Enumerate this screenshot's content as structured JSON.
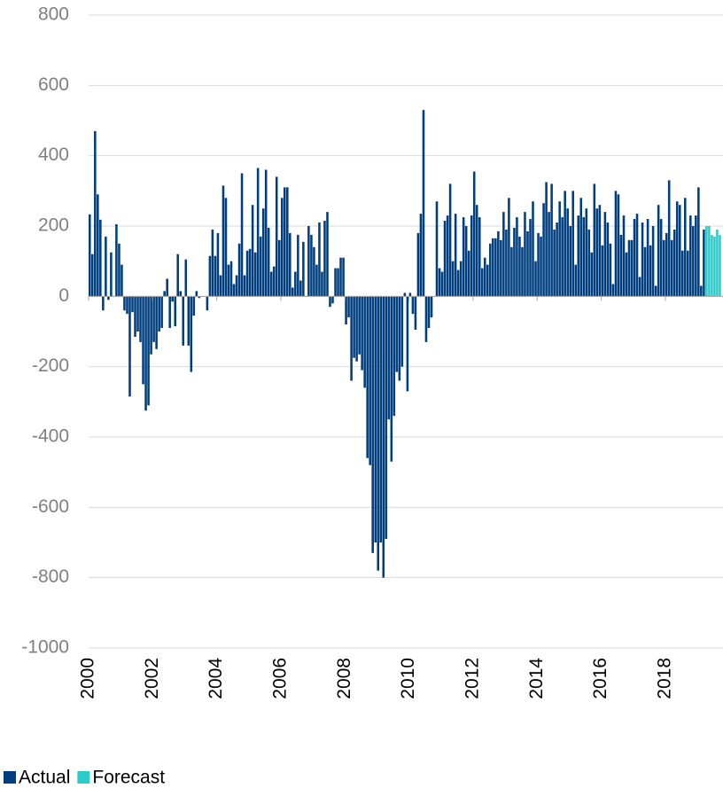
{
  "chart_data": {
    "type": "bar",
    "series": [
      {
        "name": "Actual",
        "color": "#003f7f",
        "x": [
          2000,
          2000.083,
          2000.167,
          2000.25,
          2000.333,
          2000.417,
          2000.5,
          2000.583,
          2000.667,
          2000.75,
          2000.833,
          2000.917,
          2001,
          2001.083,
          2001.167,
          2001.25,
          2001.333,
          2001.417,
          2001.5,
          2001.583,
          2001.667,
          2001.75,
          2001.833,
          2001.917,
          2002,
          2002.083,
          2002.167,
          2002.25,
          2002.333,
          2002.417,
          2002.5,
          2002.583,
          2002.667,
          2002.75,
          2002.833,
          2002.917,
          2003,
          2003.083,
          2003.167,
          2003.25,
          2003.333,
          2003.417,
          2003.5,
          2003.583,
          2003.667,
          2003.75,
          2003.833,
          2003.917,
          2004,
          2004.083,
          2004.167,
          2004.25,
          2004.333,
          2004.417,
          2004.5,
          2004.583,
          2004.667,
          2004.75,
          2004.833,
          2004.917,
          2005,
          2005.083,
          2005.167,
          2005.25,
          2005.333,
          2005.417,
          2005.5,
          2005.583,
          2005.667,
          2005.75,
          2005.833,
          2005.917,
          2006,
          2006.083,
          2006.167,
          2006.25,
          2006.333,
          2006.417,
          2006.5,
          2006.583,
          2006.667,
          2006.75,
          2006.833,
          2006.917,
          2007,
          2007.083,
          2007.167,
          2007.25,
          2007.333,
          2007.417,
          2007.5,
          2007.583,
          2007.667,
          2007.75,
          2007.833,
          2007.917,
          2008,
          2008.083,
          2008.167,
          2008.25,
          2008.333,
          2008.417,
          2008.5,
          2008.583,
          2008.667,
          2008.75,
          2008.833,
          2008.917,
          2009,
          2009.083,
          2009.167,
          2009.25,
          2009.333,
          2009.417,
          2009.5,
          2009.583,
          2009.667,
          2009.75,
          2009.833,
          2009.917,
          2010,
          2010.083,
          2010.167,
          2010.25,
          2010.333,
          2010.417,
          2010.5,
          2010.583,
          2010.667,
          2010.75,
          2010.833,
          2010.917,
          2011,
          2011.083,
          2011.167,
          2011.25,
          2011.333,
          2011.417,
          2011.5,
          2011.583,
          2011.667,
          2011.75,
          2011.833,
          2011.917,
          2012,
          2012.083,
          2012.167,
          2012.25,
          2012.333,
          2012.417,
          2012.5,
          2012.583,
          2012.667,
          2012.75,
          2012.833,
          2012.917,
          2013,
          2013.083,
          2013.167,
          2013.25,
          2013.333,
          2013.417,
          2013.5,
          2013.583,
          2013.667,
          2013.75,
          2013.833,
          2013.917,
          2014,
          2014.083,
          2014.167,
          2014.25,
          2014.333,
          2014.417,
          2014.5,
          2014.583,
          2014.667,
          2014.75,
          2014.833,
          2014.917,
          2015,
          2015.083,
          2015.167,
          2015.25,
          2015.333,
          2015.417,
          2015.5,
          2015.583,
          2015.667,
          2015.75,
          2015.833,
          2015.917,
          2016,
          2016.083,
          2016.167,
          2016.25,
          2016.333,
          2016.417,
          2016.5,
          2016.583,
          2016.667,
          2016.75,
          2016.833,
          2016.917,
          2017,
          2017.083,
          2017.167,
          2017.25,
          2017.333,
          2017.417,
          2017.5,
          2017.583,
          2017.667,
          2017.75,
          2017.833,
          2017.917,
          2018,
          2018.083,
          2018.167,
          2018.25,
          2018.333,
          2018.417,
          2018.5,
          2018.583,
          2018.667,
          2018.75,
          2018.833,
          2018.917,
          2019,
          2019.083,
          2019.167
        ],
        "values": [
          233,
          120,
          470,
          290,
          218,
          -40,
          170,
          -10,
          125,
          0,
          205,
          150,
          90,
          -40,
          -50,
          -285,
          -45,
          -115,
          -100,
          -130,
          -250,
          -325,
          -310,
          -165,
          -130,
          -150,
          -100,
          -90,
          15,
          50,
          -90,
          -15,
          -85,
          120,
          15,
          -140,
          105,
          -140,
          -215,
          -55,
          15,
          -5,
          0,
          0,
          -40,
          115,
          190,
          115,
          180,
          60,
          315,
          280,
          90,
          100,
          35,
          60,
          150,
          350,
          60,
          130,
          135,
          260,
          125,
          365,
          170,
          250,
          360,
          195,
          70,
          85,
          340,
          160,
          280,
          310,
          310,
          180,
          25,
          70,
          175,
          45,
          155,
          0,
          200,
          175,
          140,
          90,
          210,
          70,
          215,
          240,
          -30,
          -20,
          80,
          80,
          110,
          110,
          -80,
          -60,
          -240,
          -175,
          -185,
          -165,
          -210,
          -260,
          -460,
          -480,
          -730,
          -700,
          -780,
          -700,
          -800,
          -690,
          -350,
          -470,
          -340,
          -215,
          -240,
          -200,
          10,
          -270,
          10,
          -50,
          -95,
          180,
          235,
          530,
          -130,
          -90,
          -60,
          0,
          270,
          80,
          70,
          215,
          230,
          320,
          100,
          235,
          75,
          100,
          225,
          200,
          130,
          230,
          355,
          260,
          225,
          80,
          110,
          90,
          150,
          165,
          165,
          185,
          160,
          240,
          190,
          280,
          140,
          195,
          225,
          170,
          140,
          240,
          185,
          220,
          270,
          100,
          180,
          170,
          265,
          325,
          240,
          320,
          190,
          210,
          270,
          225,
          300,
          250,
          200,
          300,
          90,
          230,
          280,
          225,
          250,
          190,
          125,
          320,
          250,
          260,
          145,
          240,
          210,
          150,
          35,
          300,
          290,
          175,
          230,
          125,
          160,
          160,
          220,
          235,
          55,
          210,
          140,
          220,
          145,
          200,
          30,
          260,
          220,
          160,
          180,
          330,
          160,
          190,
          270,
          260,
          130,
          280,
          130,
          230,
          200,
          230,
          310,
          30,
          190
        ]
      },
      {
        "name": "Forecast",
        "color": "#2ecbcb",
        "x": [
          2019.25,
          2019.333,
          2019.417,
          2019.5,
          2019.583,
          2019.667
        ],
        "values": [
          200,
          200,
          175,
          170,
          190,
          175
        ]
      }
    ],
    "xlim": [
      2000,
      2019.8
    ],
    "xticks": [
      2000,
      2002,
      2004,
      2006,
      2008,
      2010,
      2012,
      2014,
      2016,
      2018
    ],
    "ylim": [
      -1000,
      800
    ],
    "yticks": [
      -1000,
      -800,
      -600,
      -400,
      -200,
      0,
      200,
      400,
      600,
      800
    ],
    "grid": true,
    "legend": "bottom-left"
  }
}
